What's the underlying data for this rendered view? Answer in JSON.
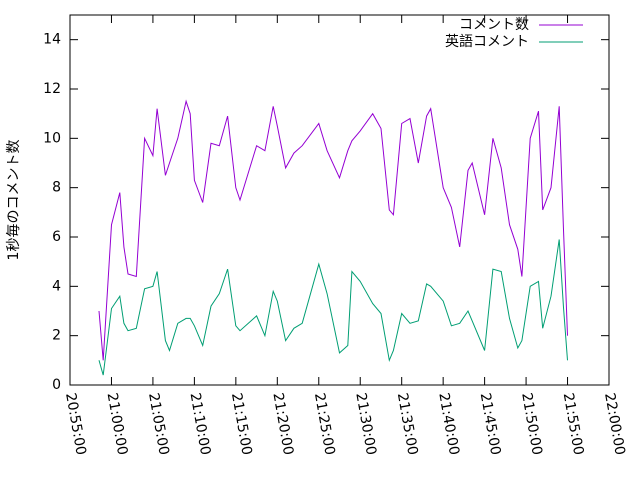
{
  "chart_data": {
    "type": "line",
    "ylabel": "1秒毎のコメント数",
    "x": [
      "20:58:30",
      "20:59:00",
      "21:00:00",
      "21:01:00",
      "21:01:30",
      "21:02:00",
      "21:03:00",
      "21:04:00",
      "21:05:00",
      "21:05:30",
      "21:06:30",
      "21:07:00",
      "21:08:00",
      "21:09:00",
      "21:09:30",
      "21:10:00",
      "21:11:00",
      "21:12:00",
      "21:13:00",
      "21:14:00",
      "21:15:00",
      "21:15:30",
      "21:17:30",
      "21:18:30",
      "21:19:30",
      "21:20:00",
      "21:21:00",
      "21:22:00",
      "21:23:00",
      "21:25:00",
      "21:26:00",
      "21:27:30",
      "21:28:30",
      "21:29:00",
      "21:30:00",
      "21:31:30",
      "21:32:30",
      "21:33:30",
      "21:34:00",
      "21:35:00",
      "21:36:00",
      "21:37:00",
      "21:38:00",
      "21:38:30",
      "21:40:00",
      "21:41:00",
      "21:42:00",
      "21:43:00",
      "21:43:30",
      "21:45:00",
      "21:46:00",
      "21:47:00",
      "21:48:00",
      "21:49:00",
      "21:49:30",
      "21:50:30",
      "21:51:30",
      "21:52:00",
      "21:53:00",
      "21:54:00",
      "21:54:30",
      "21:55:00"
    ],
    "series": [
      {
        "name": "コメント数",
        "color": "#9400d3",
        "values": [
          3.0,
          1.0,
          6.5,
          7.8,
          5.6,
          4.5,
          4.4,
          10.0,
          9.3,
          11.2,
          8.5,
          9.0,
          10.0,
          11.5,
          11.0,
          8.3,
          7.4,
          9.8,
          9.7,
          10.9,
          8.0,
          7.5,
          9.7,
          9.5,
          11.3,
          10.5,
          8.8,
          9.4,
          9.7,
          10.6,
          9.5,
          8.4,
          9.5,
          9.9,
          10.3,
          11.0,
          10.4,
          7.1,
          6.9,
          10.6,
          10.8,
          9.0,
          10.9,
          11.2,
          8.0,
          7.2,
          5.6,
          8.7,
          9.0,
          6.9,
          10.0,
          8.8,
          6.5,
          5.5,
          4.4,
          10.0,
          11.1,
          7.1,
          8.0,
          11.3,
          6.4,
          2.0
        ]
      },
      {
        "name": "英語コメント",
        "color": "#009e73",
        "values": [
          1.0,
          0.4,
          3.1,
          3.6,
          2.5,
          2.2,
          2.3,
          3.9,
          4.0,
          4.6,
          1.8,
          1.4,
          2.5,
          2.7,
          2.7,
          2.4,
          1.6,
          3.2,
          3.7,
          4.7,
          2.4,
          2.2,
          2.8,
          2.0,
          3.8,
          3.4,
          1.8,
          2.3,
          2.5,
          4.9,
          3.7,
          1.3,
          1.6,
          4.6,
          4.2,
          3.3,
          2.9,
          1.0,
          1.4,
          2.9,
          2.5,
          2.6,
          4.1,
          4.0,
          3.4,
          2.4,
          2.5,
          3.0,
          2.6,
          1.4,
          4.7,
          4.6,
          2.7,
          1.5,
          1.8,
          4.0,
          4.2,
          2.3,
          3.6,
          5.9,
          3.2,
          1.0
        ]
      }
    ],
    "xlim": [
      "20:55:00",
      "22:00:00"
    ],
    "xticks": [
      "20:55:00",
      "21:00:00",
      "21:05:00",
      "21:10:00",
      "21:15:00",
      "21:20:00",
      "21:25:00",
      "21:30:00",
      "21:35:00",
      "21:40:00",
      "21:45:00",
      "21:50:00",
      "21:55:00",
      "22:00:00"
    ],
    "ylim": [
      0,
      15
    ],
    "yticks": [
      0,
      2,
      4,
      6,
      8,
      10,
      12,
      14
    ],
    "legend": "top-right"
  }
}
